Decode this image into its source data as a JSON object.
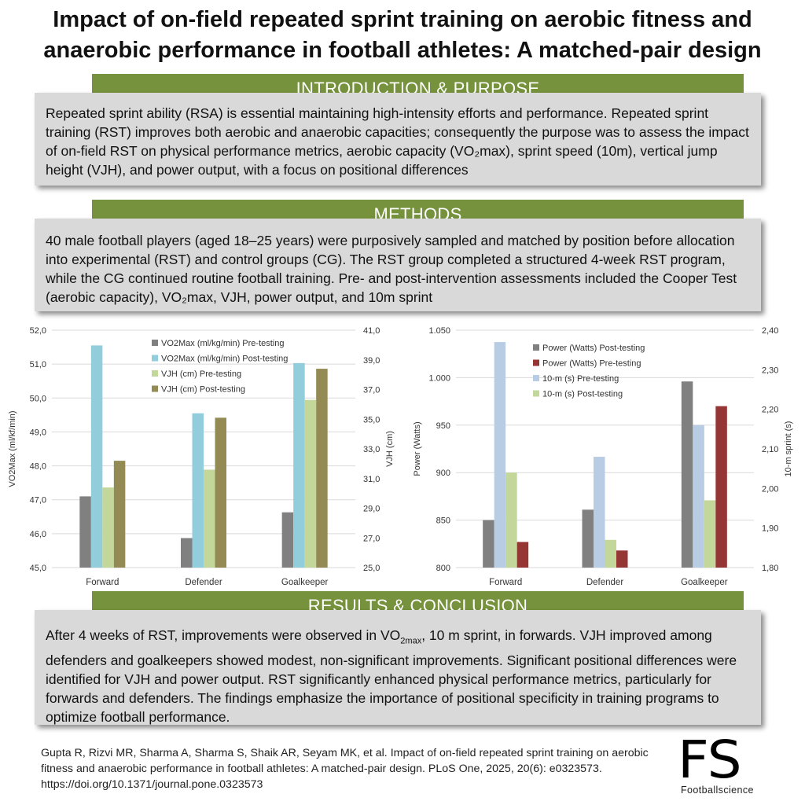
{
  "title": "Impact of on-field repeated sprint training on aerobic fitness and anaerobic performance in football athletes: A matched-pair design",
  "sections": {
    "intro": {
      "heading": "INTRODUCTION & PURPOSE",
      "text": "Repeated sprint ability (RSA) is essential maintaining high-intensity efforts and performance. Repeated sprint training (RST) improves both aerobic and anaerobic capacities; consequently the purpose was to assess the impact of on-field RST on physical performance metrics, aerobic capacity (VO₂max), sprint speed (10m), vertical jump height (VJH), and power output, with a focus on positional differences"
    },
    "methods": {
      "heading": "METHODS",
      "text": "40 male football players (aged 18–25 years) were purposively sampled and matched by position before allocation into experimental (RST) and control groups (CG). The RST group completed a structured 4-week RST program, while the CG continued routine football training. Pre- and post-intervention assessments included the Cooper Test (aerobic capacity), VO₂max, VJH, power output, and 10m sprint"
    },
    "results": {
      "heading": "RESULTS & CONCLUSION",
      "text_a": "After 4 weeks of RST, improvements were observed in VO",
      "text_sub": "2max",
      "text_b": ", 10 m sprint, in forwards. VJH improved among defenders and goalkeepers showed modest, non-significant improvements. Significant positional differences were identified for VJH and power output. RST significantly enhanced physical performance metrics, particularly for forwards and defenders. The findings emphasize the importance of positional specificity in training programs to optimize football performance."
    }
  },
  "citation": "Gupta R, Rizvi MR, Sharma A, Sharma S, Shaik AR, Seyam MK, et al. Impact of on-field repeated sprint training on aerobic fitness and anaerobic performance in football athletes: A matched-pair design. PLoS One, 2025, 20(6): e0323573. https://doi.org/10.1371/journal.pone.0323573",
  "logo": {
    "big": "FS",
    "small": "Footballscience"
  },
  "colors": {
    "banner": "#76923c",
    "box": "#d9d9d9",
    "grid": "#d9d9d9",
    "series_dark_gray": "#808080",
    "series_light_blue": "#92cddc",
    "series_light_green": "#c4d79b",
    "series_olive": "#948a54",
    "series_dark_red": "#963634",
    "series_pale_blue": "#b8cce4"
  },
  "chart_data": [
    {
      "type": "bar",
      "categories": [
        "Forward",
        "Defender",
        "Goalkeeper"
      ],
      "ylabel": "VO2Max (ml/kf/min)",
      "ylabel_right": "VJH (cm)",
      "ylim": [
        45.0,
        52.0
      ],
      "ylim_right": [
        25.0,
        41.0
      ],
      "yticks": [
        "45,0",
        "46,0",
        "47,0",
        "48,0",
        "49,0",
        "50,0",
        "51,0",
        "52,0"
      ],
      "yticks_right": [
        "25,0",
        "27,0",
        "29,0",
        "31,0",
        "33,0",
        "35,0",
        "37,0",
        "39,0",
        "41,0"
      ],
      "grid": true,
      "legend_position": "top-right",
      "series": [
        {
          "name": "VO2Max (ml/kg/min) Pre-testing",
          "axis": "left",
          "color": "#808080",
          "values": [
            47.1,
            45.87,
            46.63
          ]
        },
        {
          "name": "VO2Max (ml/kg/min) Post-testing",
          "axis": "left",
          "color": "#92cddc",
          "values": [
            51.55,
            49.55,
            51.03
          ]
        },
        {
          "name": "VJH (cm) Pre-testing",
          "axis": "right",
          "color": "#c4d79b",
          "values": [
            30.4,
            31.6,
            36.3
          ]
        },
        {
          "name": "VJH (cm) Post-testing",
          "axis": "right",
          "color": "#948a54",
          "values": [
            32.2,
            35.1,
            38.4
          ]
        }
      ]
    },
    {
      "type": "bar",
      "categories": [
        "Forward",
        "Defender",
        "Goalkeeper"
      ],
      "ylabel": "Power (Watts)",
      "ylabel_right": "10-m sprint (s)",
      "ylim": [
        800,
        1050
      ],
      "ylim_right": [
        1.8,
        2.4
      ],
      "yticks": [
        "800",
        "850",
        "900",
        "950",
        "1.000",
        "1.050"
      ],
      "yticks_right": [
        "1,80",
        "1,90",
        "2,00",
        "2,10",
        "2,20",
        "2,30",
        "2,40"
      ],
      "grid": true,
      "legend_position": "top-right",
      "series": [
        {
          "name": "Power (Watts) Post-testing",
          "axis": "left",
          "color": "#808080",
          "values": [
            850,
            861,
            996
          ]
        },
        {
          "name": "10-m (s) Pre-testing",
          "axis": "right",
          "color": "#b8cce4",
          "values": [
            2.37,
            2.08,
            2.16
          ]
        },
        {
          "name": "10-m (s) Post-testing",
          "axis": "right",
          "color": "#c4d79b",
          "values": [
            2.04,
            1.87,
            1.97
          ]
        },
        {
          "name": "Power (Watts) Pre-testing",
          "axis": "left",
          "color": "#963634",
          "values": [
            827,
            818,
            970
          ]
        }
      ],
      "legend_order": [
        0,
        3,
        1,
        2
      ]
    }
  ]
}
